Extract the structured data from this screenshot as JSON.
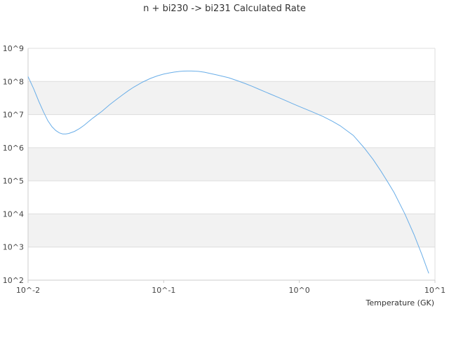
{
  "chart_data": {
    "type": "line",
    "title": "n + bi230 -> bi231 Calculated Rate",
    "xlabel": "Temperature (GK)",
    "ylabel": "",
    "x_scale": "log",
    "y_scale": "log",
    "xlim": [
      0.01,
      10
    ],
    "ylim": [
      100,
      1000000000
    ],
    "x_ticks": [
      "10^-2",
      "10^-1",
      "10^0",
      "10^1"
    ],
    "y_ticks": [
      "10^2",
      "10^3",
      "10^4",
      "10^5",
      "10^6",
      "10^7",
      "10^8",
      "10^9"
    ],
    "grid": true,
    "banded_background": true,
    "legend": "none",
    "line_color": "#6aaee8",
    "series": [
      {
        "x": [
          0.01,
          0.011,
          0.012,
          0.013,
          0.014,
          0.015,
          0.016,
          0.017,
          0.018,
          0.019,
          0.02,
          0.022,
          0.024,
          0.026,
          0.028,
          0.03,
          0.035,
          0.04,
          0.045,
          0.05,
          0.055,
          0.06,
          0.07,
          0.08,
          0.09,
          0.1,
          0.11,
          0.12,
          0.13,
          0.14,
          0.15,
          0.16,
          0.18,
          0.2,
          0.25,
          0.3,
          0.35,
          0.4,
          0.45,
          0.5,
          0.6,
          0.7,
          0.8,
          0.9,
          1.0,
          1.25,
          1.5,
          1.75,
          2.0,
          2.5,
          3.0,
          3.5,
          4.0,
          4.5,
          5.0,
          6.0,
          7.0,
          8.0,
          9.0
        ],
        "y": [
          140000000.0,
          60000000.0,
          25000000.0,
          12000000.0,
          6500000.0,
          4300000.0,
          3300000.0,
          2800000.0,
          2600000.0,
          2600000.0,
          2700000.0,
          3100000.0,
          3800000.0,
          4800000.0,
          6200000.0,
          7800000.0,
          12500000.0,
          20000000.0,
          29000000.0,
          40000000.0,
          53000000.0,
          67000000.0,
          96000000.0,
          124000000.0,
          148000000.0,
          167000000.0,
          181000000.0,
          192000000.0,
          200000000.0,
          205000000.0,
          207000000.0,
          207000000.0,
          202000000.0,
          190000000.0,
          155000000.0,
          130000000.0,
          105000000.0,
          86000000.0,
          71000000.0,
          59000000.0,
          43000000.0,
          33000000.0,
          26000000.0,
          21000000.0,
          17500000.0,
          12000000.0,
          8700000.0,
          6300000.0,
          4600000.0,
          2350000.0,
          1000000.0,
          440000.0,
          195000.0,
          90000.0,
          44000.0,
          10000.0,
          2400.0,
          600.0,
          160.0
        ]
      }
    ]
  }
}
